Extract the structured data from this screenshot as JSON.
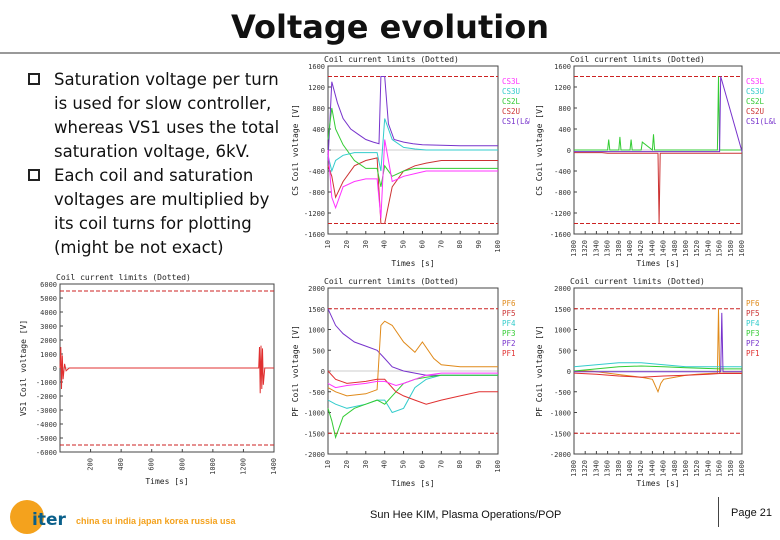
{
  "title": "Voltage evolution",
  "bullets": [
    "Saturation voltage per turn is used for slow controller, whereas VS1 uses the total saturation voltage, 6kV.",
    "Each coil and saturation voltages are multiplied by its coil turns for plotting (might be not exact)"
  ],
  "footer": {
    "logo_text": "iter",
    "members": "china eu india japan korea russia usa",
    "author": "Sun Hee KIM, Plasma Operations/POP",
    "page": "Page 21"
  },
  "chart_data": [
    {
      "id": "cs_left",
      "type": "line",
      "title": "Coil current limits (Dotted)",
      "xlabel": "Times [s]",
      "ylabel": "CS Coil voltage [V]",
      "xlim": [
        10,
        100
      ],
      "ylim": [
        -1600,
        1600
      ],
      "xticks": [
        10,
        20,
        30,
        40,
        50,
        60,
        70,
        80,
        90,
        100
      ],
      "yticks": [
        1600,
        1200,
        800,
        400,
        0,
        -400,
        -800,
        -1200,
        -1600
      ],
      "legend": [
        "CS3L",
        "CS3U",
        "CS2L",
        "CS2U",
        "CS1(L&U)"
      ],
      "legend_colors": [
        "#ff33ff",
        "#33cccc",
        "#33cc33",
        "#cc3333",
        "#7733cc"
      ],
      "limits": [
        1400,
        -1400
      ],
      "series": [
        {
          "color": "#7733cc",
          "x": [
            10,
            12,
            15,
            18,
            22,
            26,
            30,
            34,
            37,
            38,
            40,
            42,
            45,
            50,
            55,
            60,
            70,
            80,
            90,
            100
          ],
          "y": [
            -200,
            1300,
            900,
            600,
            400,
            300,
            200,
            150,
            120,
            1400,
            1400,
            500,
            200,
            150,
            120,
            100,
            90,
            80,
            80,
            80
          ]
        },
        {
          "color": "#cc3333",
          "x": [
            10,
            12,
            14,
            18,
            24,
            30,
            36,
            38,
            40,
            44,
            50,
            56,
            62,
            70,
            80,
            90,
            100
          ],
          "y": [
            -300,
            -500,
            -900,
            -600,
            -300,
            -200,
            -150,
            -1400,
            -1400,
            -700,
            -400,
            -300,
            -250,
            -200,
            -200,
            -200,
            -200
          ]
        },
        {
          "color": "#33cc33",
          "x": [
            10,
            12,
            14,
            18,
            24,
            30,
            36,
            38,
            40,
            44,
            50,
            56,
            62,
            70,
            80,
            90,
            100
          ],
          "y": [
            200,
            800,
            400,
            100,
            -200,
            -350,
            -350,
            -700,
            -300,
            -500,
            -400,
            -350,
            -350,
            -350,
            -350,
            -350,
            -350
          ]
        },
        {
          "color": "#33cccc",
          "x": [
            10,
            12,
            14,
            18,
            24,
            30,
            36,
            38,
            40,
            44,
            50,
            56,
            62,
            70,
            80,
            90,
            100
          ],
          "y": [
            -100,
            -400,
            -200,
            -100,
            -50,
            -50,
            -50,
            -400,
            600,
            200,
            50,
            20,
            0,
            0,
            0,
            0,
            0
          ]
        },
        {
          "color": "#ff33ff",
          "x": [
            10,
            12,
            14,
            18,
            24,
            30,
            36,
            38,
            40,
            44,
            50,
            56,
            62,
            70,
            80,
            90,
            100
          ],
          "y": [
            0,
            -900,
            -1100,
            -700,
            -600,
            -550,
            -550,
            -1300,
            200,
            -600,
            -500,
            -450,
            -400,
            -400,
            -400,
            -400,
            -400
          ]
        }
      ]
    },
    {
      "id": "cs_right",
      "type": "line",
      "title": "Coil current limits (Dotted)",
      "xlabel": "Times [s]",
      "ylabel": "CS Coil voltage [V]",
      "xlim": [
        1300,
        1600
      ],
      "ylim": [
        -1600,
        1600
      ],
      "xticks": [
        1300,
        1320,
        1340,
        1360,
        1380,
        1400,
        1420,
        1440,
        1460,
        1480,
        1500,
        1520,
        1540,
        1560,
        1580,
        1600
      ],
      "yticks": [
        1600,
        1200,
        800,
        400,
        0,
        -400,
        -800,
        -1200,
        -1600
      ],
      "legend": [
        "CS3L",
        "CS3U",
        "CS2L",
        "CS2U",
        "CS1(L&U)"
      ],
      "legend_colors": [
        "#ff33ff",
        "#33cccc",
        "#33cc33",
        "#cc3333",
        "#7733cc"
      ],
      "limits": [
        1400,
        -1400
      ],
      "series": [
        {
          "color": "#33cc33",
          "x": [
            1300,
            1340,
            1360,
            1362,
            1364,
            1380,
            1382,
            1384,
            1400,
            1402,
            1404,
            1420,
            1422,
            1440,
            1442,
            1444,
            1460,
            1500,
            1540,
            1556,
            1558,
            1560,
            1600
          ],
          "y": [
            0,
            0,
            0,
            200,
            0,
            0,
            250,
            0,
            0,
            200,
            0,
            0,
            150,
            0,
            300,
            0,
            0,
            0,
            0,
            0,
            1400,
            0,
            0
          ]
        },
        {
          "color": "#cc3333",
          "x": [
            1300,
            1350,
            1360,
            1400,
            1440,
            1450,
            1452,
            1454,
            1500,
            1550,
            1560,
            1600
          ],
          "y": [
            -50,
            -50,
            -60,
            -60,
            -60,
            -60,
            -1400,
            -60,
            -60,
            -60,
            -60,
            -60
          ]
        },
        {
          "color": "#7733cc",
          "x": [
            1300,
            1360,
            1420,
            1480,
            1540,
            1560,
            1562,
            1600
          ],
          "y": [
            -30,
            -30,
            -30,
            -30,
            -30,
            -30,
            1400,
            -30
          ]
        }
      ]
    },
    {
      "id": "vs1",
      "type": "line",
      "title": "Coil current limits (Dotted)",
      "xlabel": "Times [s]",
      "ylabel": "VS1 Coil voltage [V]",
      "xlim": [
        0,
        1400
      ],
      "ylim": [
        -6000,
        6000
      ],
      "xticks": [
        200,
        400,
        600,
        800,
        1000,
        1200,
        1400
      ],
      "yticks": [
        6000,
        5000,
        4000,
        3000,
        2000,
        1000,
        0,
        -1000,
        -2000,
        -3000,
        -4000,
        -5000,
        -6000
      ],
      "limits": [
        5500,
        -5500
      ],
      "series": [
        {
          "color": "#e03030",
          "x": [
            0,
            5,
            10,
            15,
            20,
            30,
            40,
            60,
            100,
            200,
            400,
            600,
            800,
            1000,
            1200,
            1300,
            1305,
            1310,
            1315,
            1320,
            1325,
            1330,
            1340,
            1360,
            1400
          ],
          "y": [
            0,
            1500,
            -1500,
            900,
            -800,
            300,
            -200,
            0,
            0,
            0,
            0,
            0,
            0,
            0,
            0,
            0,
            1500,
            -1800,
            1600,
            -1500,
            1400,
            -1200,
            0,
            0,
            0
          ]
        }
      ]
    },
    {
      "id": "pf_left",
      "type": "line",
      "title": "Coil current limits (Dotted)",
      "xlabel": "Times [s]",
      "ylabel": "PF Coil voltage [V]",
      "xlim": [
        10,
        100
      ],
      "ylim": [
        -2000,
        2000
      ],
      "xticks": [
        10,
        20,
        30,
        40,
        50,
        60,
        70,
        80,
        90,
        100
      ],
      "yticks": [
        2000,
        1500,
        1000,
        500,
        0,
        -500,
        -1000,
        -1500,
        -2000
      ],
      "legend": [
        "PF6",
        "PF5",
        "PF4",
        "PF3",
        "PF2",
        "PF1"
      ],
      "legend_colors": [
        "#e08a1a",
        "#cc3333",
        "#33cccc",
        "#33cc33",
        "#7733cc",
        "#e03030"
      ],
      "limits": [
        1500,
        -1500
      ],
      "series": [
        {
          "color": "#7733cc",
          "x": [
            10,
            14,
            18,
            24,
            30,
            36,
            40,
            44,
            50,
            56,
            62,
            70,
            80,
            90,
            100
          ],
          "y": [
            1500,
            1100,
            900,
            700,
            600,
            500,
            300,
            100,
            0,
            -50,
            -100,
            -100,
            -100,
            -100,
            -100
          ]
        },
        {
          "color": "#e08a1a",
          "x": [
            10,
            14,
            20,
            30,
            36,
            38,
            40,
            44,
            50,
            56,
            60,
            66,
            70,
            80,
            90,
            100
          ],
          "y": [
            -400,
            -500,
            -600,
            -550,
            -450,
            1100,
            1200,
            1100,
            700,
            450,
            700,
            300,
            150,
            100,
            100,
            100
          ]
        },
        {
          "color": "#33cccc",
          "x": [
            10,
            14,
            20,
            30,
            36,
            40,
            44,
            50,
            56,
            62,
            70,
            80,
            90,
            100
          ],
          "y": [
            -700,
            -800,
            -900,
            -800,
            -700,
            -700,
            -1000,
            -900,
            -400,
            -200,
            -100,
            -100,
            -100,
            -100
          ]
        },
        {
          "color": "#33cc33",
          "x": [
            10,
            12,
            14,
            18,
            24,
            30,
            36,
            40,
            46,
            50,
            56,
            62,
            70,
            80,
            90,
            100
          ],
          "y": [
            -900,
            -1200,
            -1600,
            -1100,
            -900,
            -800,
            -700,
            -800,
            -500,
            -300,
            -200,
            -150,
            -100,
            -100,
            -100,
            -100
          ]
        },
        {
          "color": "#e03030",
          "x": [
            10,
            14,
            20,
            30,
            36,
            40,
            46,
            50,
            56,
            62,
            70,
            80,
            90,
            100
          ],
          "y": [
            0,
            -200,
            -300,
            -250,
            -200,
            -200,
            -500,
            -600,
            -700,
            -800,
            -700,
            -600,
            -500,
            -500
          ]
        },
        {
          "color": "#ff33ff",
          "x": [
            10,
            14,
            20,
            30,
            36,
            40,
            46,
            50,
            56,
            62,
            70,
            80,
            90,
            100
          ],
          "y": [
            -300,
            -400,
            -350,
            -300,
            -250,
            -250,
            -350,
            -300,
            -200,
            -100,
            -50,
            -50,
            -50,
            -50
          ]
        }
      ]
    },
    {
      "id": "pf_right",
      "type": "line",
      "title": "Coil current limits (Dotted)",
      "xlabel": "Times [s]",
      "ylabel": "PF Coil voltage [V]",
      "xlim": [
        1300,
        1600
      ],
      "ylim": [
        -2000,
        2000
      ],
      "xticks": [
        1300,
        1320,
        1340,
        1360,
        1380,
        1400,
        1420,
        1440,
        1460,
        1480,
        1500,
        1520,
        1540,
        1560,
        1580,
        1600
      ],
      "yticks": [
        2000,
        1500,
        1000,
        500,
        0,
        -500,
        -1000,
        -1500,
        -2000
      ],
      "legend": [
        "PF6",
        "PF5",
        "PF4",
        "PF3",
        "PF2",
        "PF1"
      ],
      "legend_colors": [
        "#e08a1a",
        "#cc3333",
        "#33cccc",
        "#33cc33",
        "#7733cc",
        "#e03030"
      ],
      "limits": [
        1500,
        -1500
      ],
      "series": [
        {
          "color": "#e08a1a",
          "x": [
            1300,
            1330,
            1360,
            1390,
            1420,
            1440,
            1450,
            1455,
            1460,
            1480,
            1500,
            1520,
            1540,
            1556,
            1558,
            1560,
            1600
          ],
          "y": [
            0,
            0,
            -50,
            -100,
            -150,
            -200,
            -500,
            -300,
            -200,
            -150,
            -100,
            -80,
            -60,
            -50,
            1500,
            -50,
            -50
          ]
        },
        {
          "color": "#33cccc",
          "x": [
            1300,
            1340,
            1380,
            1420,
            1460,
            1500,
            1540,
            1560,
            1600
          ],
          "y": [
            100,
            150,
            200,
            200,
            150,
            100,
            100,
            100,
            100
          ]
        },
        {
          "color": "#33cc33",
          "x": [
            1300,
            1340,
            1380,
            1420,
            1460,
            1500,
            1540,
            1560,
            1600
          ],
          "y": [
            0,
            50,
            100,
            120,
            100,
            80,
            60,
            50,
            50
          ]
        },
        {
          "color": "#e03030",
          "x": [
            1300,
            1340,
            1380,
            1420,
            1460,
            1500,
            1540,
            1560,
            1600
          ],
          "y": [
            -50,
            -80,
            -120,
            -150,
            -120,
            -100,
            -80,
            -60,
            -60
          ]
        },
        {
          "color": "#7733cc",
          "x": [
            1300,
            1340,
            1380,
            1420,
            1460,
            1500,
            1540,
            1562,
            1564,
            1566,
            1600
          ],
          "y": [
            -20,
            -20,
            -20,
            -20,
            -20,
            -20,
            -20,
            -20,
            1400,
            -20,
            -20
          ]
        }
      ]
    }
  ]
}
